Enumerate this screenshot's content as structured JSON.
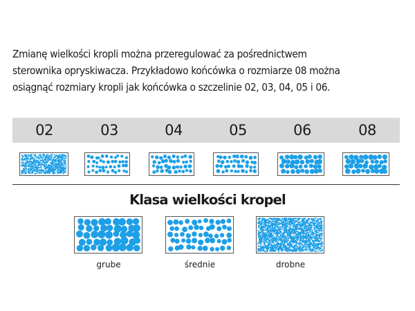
{
  "intro": {
    "lines": [
      "Zmianę wielkości kropli można przeregulować za pośrednictwem",
      "sterownika opryskiwacza. Przykładowo końcówka o rozmiarze 08 można",
      "osiągnąć rozmiary kropli jak końcówka o szczelinie 02, 03, 04, 05 i 06."
    ]
  },
  "nozzles": [
    {
      "label": "02",
      "icon": "spray-pattern-fine-icon"
    },
    {
      "label": "03",
      "icon": "spray-pattern-medium-icon"
    },
    {
      "label": "04",
      "icon": "spray-pattern-medium-icon"
    },
    {
      "label": "05",
      "icon": "spray-pattern-medium-icon"
    },
    {
      "label": "06",
      "icon": "spray-pattern-coarse-icon"
    },
    {
      "label": "08",
      "icon": "spray-pattern-coarse-icon"
    }
  ],
  "droplet_classes": {
    "title": "Klasa wielkości kropel",
    "items": [
      {
        "label": "grube",
        "icon": "coarse-droplets-icon"
      },
      {
        "label": "średnie",
        "icon": "medium-droplets-icon"
      },
      {
        "label": "drobne",
        "icon": "fine-droplets-icon"
      }
    ]
  },
  "colors": {
    "droplet": "#1e9fe6",
    "band": "#d9d9d9",
    "text": "#1a1a1a",
    "rule": "#333333"
  }
}
